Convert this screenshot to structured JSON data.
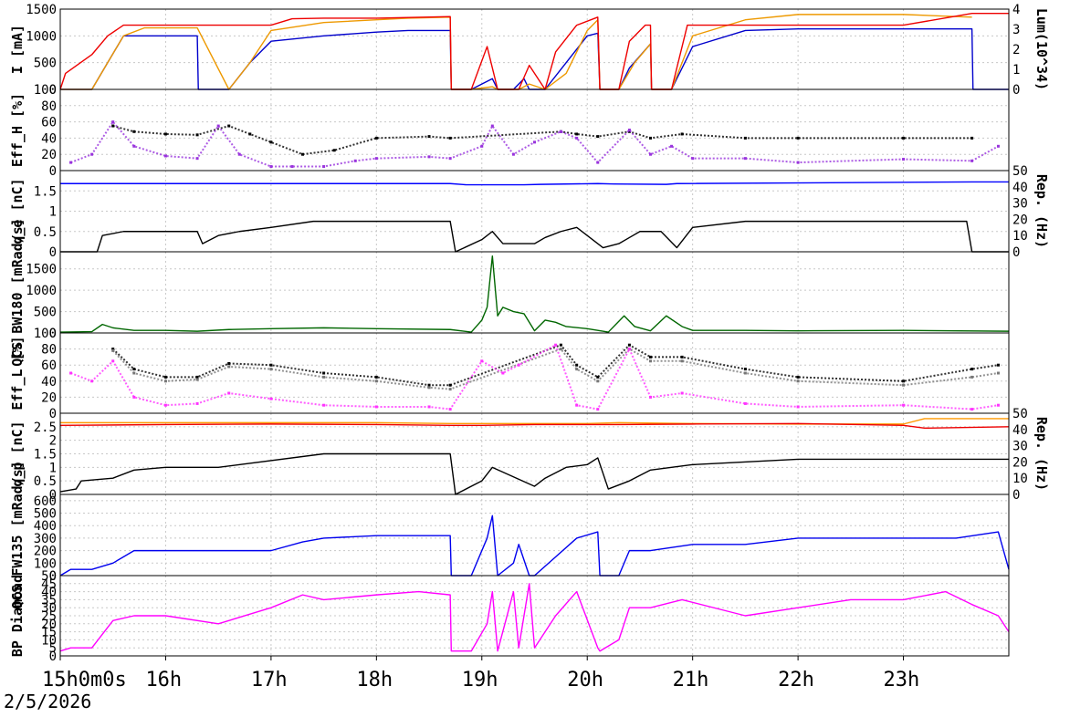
{
  "chart_data": [
    {
      "type": "line",
      "ylabel": "I [mA]",
      "ylabel_right": "Lum(10^34)",
      "ylim": [
        0,
        1500
      ],
      "yticks": [
        "0",
        "500",
        "1000",
        "1500"
      ],
      "y2lim": [
        0,
        4
      ],
      "y2ticks": [
        "0",
        "1",
        "2",
        "3",
        "4"
      ],
      "series": [
        {
          "color": "#0000cc",
          "x": [
            15.0,
            15.1,
            15.3,
            15.45,
            15.6,
            16.3,
            16.31,
            16.6,
            16.8,
            17.0,
            17.5,
            18.0,
            18.3,
            18.7,
            18.71,
            18.9,
            19.1,
            19.15,
            19.3,
            19.4,
            19.45,
            19.6,
            19.8,
            20.0,
            20.1,
            20.12,
            20.3,
            20.4,
            20.6,
            20.61,
            20.8,
            21.0,
            21.5,
            22.0,
            23.0,
            23.65,
            23.66,
            24.0
          ],
          "values": [
            0,
            0,
            0,
            500,
            1000,
            1000,
            0,
            0,
            500,
            900,
            1000,
            1070,
            1100,
            1100,
            0,
            0,
            200,
            0,
            0,
            200,
            0,
            0,
            500,
            1000,
            1050,
            0,
            0,
            400,
            850,
            0,
            0,
            800,
            1100,
            1130,
            1130,
            1130,
            0,
            0
          ]
        },
        {
          "color": "#ee9900",
          "x": [
            15.0,
            15.3,
            15.45,
            15.6,
            15.8,
            16.0,
            16.3,
            16.6,
            16.8,
            17.0,
            17.5,
            18.0,
            18.3,
            18.7,
            18.71,
            18.9,
            19.1,
            19.15,
            19.35,
            19.45,
            19.6,
            19.8,
            20.0,
            20.1,
            20.12,
            20.3,
            20.45,
            20.6,
            20.61,
            20.8,
            21.0,
            21.5,
            22.0,
            23.0,
            23.65
          ],
          "values": [
            0,
            0,
            500,
            1000,
            1150,
            1150,
            1150,
            0,
            500,
            1100,
            1250,
            1300,
            1330,
            1350,
            0,
            0,
            50,
            0,
            0,
            100,
            0,
            300,
            1100,
            1300,
            0,
            0,
            500,
            850,
            0,
            0,
            1000,
            1300,
            1400,
            1400,
            1350
          ]
        },
        {
          "color": "#ee0000",
          "x": [
            15.0,
            15.05,
            15.3,
            15.45,
            15.6,
            16.3,
            17.0,
            17.2,
            17.5,
            18.0,
            18.7,
            18.71,
            18.9,
            19.05,
            19.15,
            19.35,
            19.45,
            19.6,
            19.7,
            19.9,
            20.1,
            20.12,
            20.3,
            20.4,
            20.55,
            20.6,
            20.61,
            20.8,
            20.95,
            21.5,
            22.0,
            23.0,
            23.65,
            24.0
          ],
          "values": [
            0,
            300,
            650,
            1000,
            1200,
            1200,
            1200,
            1320,
            1330,
            1330,
            1360,
            0,
            0,
            800,
            0,
            0,
            450,
            0,
            700,
            1200,
            1350,
            0,
            0,
            900,
            1200,
            1200,
            0,
            0,
            1200,
            1200,
            1200,
            1200,
            1420,
            1420
          ]
        }
      ]
    },
    {
      "type": "scatter",
      "ylabel": "Eff_H [%]",
      "ylim": [
        0,
        100
      ],
      "yticks": [
        "0",
        "20",
        "40",
        "60",
        "80",
        "100"
      ],
      "series": [
        {
          "color": "#000000",
          "x": [
            15.5,
            15.7,
            16.0,
            16.3,
            16.6,
            16.8,
            17.0,
            17.3,
            17.6,
            18.0,
            18.5,
            18.7,
            19.75,
            19.9,
            20.1,
            20.4,
            20.6,
            20.9,
            21.5,
            22.0,
            23.0,
            23.65
          ],
          "values": [
            55,
            48,
            45,
            44,
            55,
            45,
            35,
            20,
            25,
            40,
            42,
            40,
            48,
            45,
            42,
            48,
            40,
            45,
            40,
            40,
            40,
            40
          ]
        },
        {
          "color": "#9933dd",
          "x": [
            15.1,
            15.3,
            15.5,
            15.7,
            16.0,
            16.3,
            16.5,
            16.7,
            17.0,
            17.2,
            17.5,
            17.8,
            18.0,
            18.5,
            18.7,
            19.0,
            19.1,
            19.3,
            19.5,
            19.75,
            19.9,
            20.1,
            20.4,
            20.6,
            20.8,
            21.0,
            21.5,
            22.0,
            23.0,
            23.65,
            23.9
          ],
          "values": [
            10,
            20,
            60,
            30,
            18,
            15,
            55,
            20,
            5,
            5,
            5,
            12,
            15,
            17,
            15,
            30,
            55,
            20,
            35,
            48,
            40,
            10,
            50,
            20,
            30,
            15,
            15,
            10,
            14,
            12,
            30
          ]
        }
      ]
    },
    {
      "type": "line",
      "ylabel": "q_e [nC]",
      "ylabel_right": "Rep. (Hz)",
      "ylim": [
        0,
        2
      ],
      "yticks": [
        "0",
        "0.5",
        "1",
        "1.5"
      ],
      "y2lim": [
        0,
        50
      ],
      "y2ticks": [
        "0",
        "10",
        "20",
        "30",
        "40",
        "50"
      ],
      "series": [
        {
          "color": "#0000ff",
          "x": [
            15.0,
            16.3,
            16.4,
            18.7,
            18.85,
            19.4,
            19.55,
            20.1,
            20.25,
            20.75,
            20.85,
            23.65,
            23.75,
            24.0
          ],
          "values": [
            1.68,
            1.68,
            1.68,
            1.68,
            1.65,
            1.65,
            1.66,
            1.68,
            1.67,
            1.66,
            1.68,
            1.72,
            1.72,
            1.72
          ]
        },
        {
          "color": "#000000",
          "x": [
            15.0,
            15.35,
            15.4,
            15.6,
            16.3,
            16.35,
            16.5,
            16.7,
            17.0,
            17.4,
            18.7,
            18.75,
            19.0,
            19.1,
            19.2,
            19.5,
            19.6,
            19.75,
            19.9,
            20.15,
            20.3,
            20.4,
            20.5,
            20.7,
            20.85,
            21.0,
            21.5,
            23.6,
            23.65,
            24.0
          ],
          "values": [
            0,
            0,
            0.4,
            0.5,
            0.5,
            0.2,
            0.4,
            0.5,
            0.6,
            0.75,
            0.75,
            0,
            0.3,
            0.5,
            0.2,
            0.2,
            0.35,
            0.5,
            0.6,
            0.1,
            0.2,
            0.35,
            0.5,
            0.5,
            0.1,
            0.6,
            0.75,
            0.75,
            0,
            0
          ]
        }
      ]
    },
    {
      "type": "line",
      "ylabel": "QCS BW180 [mRad/s]",
      "ylim": [
        0,
        1900
      ],
      "yticks": [
        "0",
        "500",
        "1000",
        "1500"
      ],
      "series": [
        {
          "color": "#006600",
          "x": [
            15.0,
            15.3,
            15.4,
            15.5,
            15.7,
            16.0,
            16.3,
            16.6,
            17.0,
            17.5,
            18.0,
            18.7,
            18.9,
            19.0,
            19.05,
            19.1,
            19.15,
            19.2,
            19.3,
            19.4,
            19.5,
            19.6,
            19.7,
            19.8,
            20.0,
            20.2,
            20.35,
            20.45,
            20.6,
            20.75,
            20.9,
            21.0,
            21.5,
            22.0,
            23.0,
            24.0
          ],
          "values": [
            20,
            30,
            200,
            120,
            60,
            60,
            40,
            80,
            100,
            120,
            100,
            80,
            20,
            300,
            600,
            1800,
            400,
            600,
            500,
            450,
            50,
            300,
            250,
            150,
            100,
            20,
            400,
            150,
            50,
            400,
            150,
            60,
            60,
            50,
            60,
            40
          ]
        }
      ]
    },
    {
      "type": "scatter",
      "ylabel": "Eff_L [%]",
      "ylim": [
        0,
        100
      ],
      "yticks": [
        "0",
        "20",
        "40",
        "60",
        "80",
        "100"
      ],
      "series": [
        {
          "color": "#000000",
          "x": [
            15.5,
            15.7,
            16.0,
            16.3,
            16.6,
            17.0,
            17.5,
            18.0,
            18.5,
            18.7,
            19.75,
            19.9,
            20.1,
            20.4,
            20.6,
            20.9,
            21.5,
            22.0,
            23.0,
            23.65,
            23.9
          ],
          "values": [
            80,
            55,
            45,
            45,
            62,
            60,
            50,
            45,
            35,
            35,
            85,
            60,
            45,
            85,
            70,
            70,
            55,
            45,
            40,
            55,
            60
          ]
        },
        {
          "color": "#777777",
          "x": [
            15.5,
            15.7,
            16.0,
            16.3,
            16.6,
            17.0,
            17.5,
            18.0,
            18.5,
            18.7,
            19.75,
            19.9,
            20.1,
            20.4,
            20.6,
            20.9,
            21.5,
            22.0,
            23.0,
            23.65,
            23.9
          ],
          "values": [
            78,
            50,
            40,
            42,
            58,
            55,
            45,
            40,
            32,
            30,
            80,
            55,
            40,
            80,
            65,
            65,
            50,
            40,
            35,
            45,
            50
          ]
        },
        {
          "color": "#ff33ff",
          "x": [
            15.1,
            15.3,
            15.5,
            15.7,
            16.0,
            16.3,
            16.6,
            17.0,
            17.5,
            18.0,
            18.5,
            18.7,
            19.0,
            19.2,
            19.35,
            19.7,
            19.9,
            20.1,
            20.4,
            20.6,
            20.9,
            21.5,
            22.0,
            23.0,
            23.65,
            23.9
          ],
          "values": [
            50,
            40,
            65,
            20,
            10,
            12,
            25,
            18,
            10,
            8,
            8,
            5,
            65,
            50,
            60,
            85,
            10,
            5,
            80,
            20,
            25,
            12,
            8,
            10,
            5,
            10
          ]
        }
      ]
    },
    {
      "type": "line",
      "ylabel": "q_p [nC]",
      "ylabel_right": "Rep. (Hz)",
      "ylim": [
        0,
        3
      ],
      "yticks": [
        "0",
        "0.5",
        "1",
        "1.5",
        "2",
        "2.5"
      ],
      "y2lim": [
        0,
        50
      ],
      "y2ticks": [
        "0",
        "10",
        "20",
        "30",
        "40",
        "50"
      ],
      "series": [
        {
          "color": "#ff9900",
          "x": [
            15.0,
            16.0,
            17.0,
            18.0,
            18.7,
            19.0,
            19.5,
            20.0,
            20.3,
            21.0,
            22.0,
            23.0,
            23.2,
            24.0
          ],
          "values": [
            2.65,
            2.65,
            2.65,
            2.65,
            2.62,
            2.62,
            2.62,
            2.62,
            2.65,
            2.62,
            2.6,
            2.6,
            2.8,
            2.8
          ]
        },
        {
          "color": "#ee0000",
          "x": [
            15.0,
            16.0,
            17.0,
            18.0,
            18.7,
            19.0,
            19.5,
            20.0,
            20.3,
            21.0,
            22.0,
            23.0,
            23.2,
            24.0
          ],
          "values": [
            2.55,
            2.58,
            2.6,
            2.58,
            2.55,
            2.55,
            2.58,
            2.58,
            2.58,
            2.6,
            2.62,
            2.55,
            2.45,
            2.5
          ]
        },
        {
          "color": "#000000",
          "x": [
            15.0,
            15.15,
            15.2,
            15.5,
            15.7,
            16.0,
            16.5,
            17.5,
            18.7,
            18.75,
            19.0,
            19.1,
            19.5,
            19.6,
            19.8,
            20.0,
            20.1,
            20.2,
            20.4,
            20.6,
            20.8,
            21.0,
            22.0,
            23.65,
            24.0
          ],
          "values": [
            0.1,
            0.2,
            0.5,
            0.6,
            0.9,
            1.0,
            1.0,
            1.5,
            1.5,
            0,
            0.5,
            1.0,
            0.3,
            0.6,
            1.0,
            1.1,
            1.35,
            0.2,
            0.5,
            0.9,
            1.0,
            1.1,
            1.3,
            1.3,
            1.3
          ]
        }
      ]
    },
    {
      "type": "line",
      "ylabel": "QCS FW135 [mRad/s]",
      "ylim": [
        0,
        650
      ],
      "yticks": [
        "0",
        "100",
        "200",
        "300",
        "400",
        "500",
        "600"
      ],
      "series": [
        {
          "color": "#0000ee",
          "x": [
            15.0,
            15.1,
            15.3,
            15.5,
            15.7,
            16.0,
            16.5,
            17.0,
            17.3,
            17.5,
            18.0,
            18.7,
            18.71,
            18.9,
            19.05,
            19.1,
            19.15,
            19.3,
            19.35,
            19.45,
            19.5,
            19.7,
            19.9,
            20.1,
            20.12,
            20.3,
            20.4,
            20.6,
            21.0,
            21.5,
            22.0,
            22.5,
            23.0,
            23.5,
            23.9,
            24.0
          ],
          "values": [
            0,
            50,
            50,
            100,
            200,
            200,
            200,
            200,
            270,
            300,
            320,
            320,
            0,
            0,
            300,
            480,
            0,
            100,
            250,
            0,
            0,
            150,
            300,
            350,
            0,
            0,
            200,
            200,
            250,
            250,
            300,
            300,
            300,
            300,
            350,
            50
          ]
        }
      ]
    },
    {
      "type": "line",
      "ylabel": "BP Diamond",
      "ylim": [
        0,
        50
      ],
      "yticks": [
        "0",
        "5",
        "10",
        "15",
        "20",
        "25",
        "30",
        "35",
        "40",
        "45",
        "50"
      ],
      "xlabel": "",
      "xticks": [
        "15h0m0s",
        "16h",
        "17h",
        "18h",
        "19h",
        "20h",
        "21h",
        "22h",
        "23h"
      ],
      "date": "2/5/2026",
      "series": [
        {
          "color": "#ff00ff",
          "x": [
            15.0,
            15.1,
            15.3,
            15.5,
            15.7,
            16.0,
            16.5,
            17.0,
            17.3,
            17.5,
            18.0,
            18.4,
            18.7,
            18.71,
            18.9,
            19.05,
            19.1,
            19.15,
            19.3,
            19.35,
            19.45,
            19.5,
            19.7,
            19.9,
            20.1,
            20.12,
            20.3,
            20.4,
            20.6,
            20.9,
            21.5,
            22.0,
            22.5,
            23.0,
            23.4,
            23.65,
            23.9,
            24.0
          ],
          "values": [
            3,
            5,
            5,
            22,
            25,
            25,
            20,
            30,
            38,
            35,
            38,
            40,
            38,
            3,
            3,
            20,
            40,
            3,
            40,
            5,
            45,
            5,
            25,
            40,
            5,
            3,
            10,
            30,
            30,
            35,
            25,
            30,
            35,
            35,
            40,
            32,
            25,
            15
          ]
        }
      ]
    }
  ]
}
